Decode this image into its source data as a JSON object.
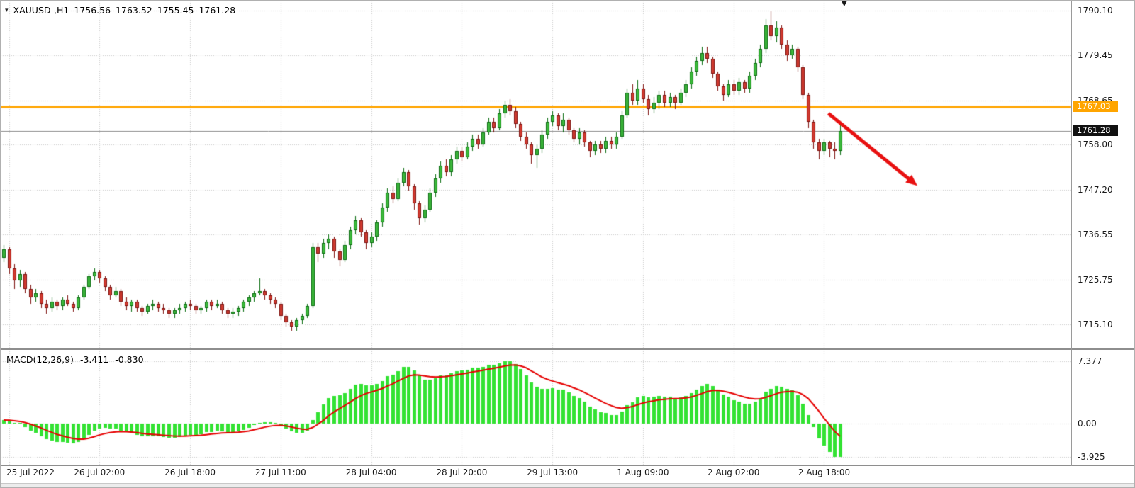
{
  "icons": {
    "symbol_dropdown": "▾",
    "chart_shift": "▼"
  },
  "header": {
    "symbol_period": "XAUUSD-,H1",
    "open": "1756.56",
    "high": "1763.52",
    "low": "1755.45",
    "close": "1761.28"
  },
  "macd_panel": {
    "label": "MACD(12,26,9)",
    "main_value": "-3.411",
    "signal_value": "-0.830"
  },
  "colors": {
    "candle_up_fill": "#3cb83c",
    "candle_up_border": "#0c6e12",
    "candle_down_fill": "#cf3a30",
    "candle_down_border": "#801512",
    "macd_hist": "#33e233",
    "macd_signal": "#e60000",
    "level_line": "#ffa500",
    "bid_line": "#8c8c8c",
    "grid": "#c9c9c9",
    "arrow": "#e81010"
  },
  "chart_data": {
    "type": "candlestick",
    "symbol": "XAUUSD-",
    "timeframe": "H1",
    "price_axis_range": {
      "top": 1792.47,
      "bottom": 1709.27
    },
    "price_ticks": [
      1790.1,
      1779.45,
      1768.65,
      1758.0,
      1747.2,
      1736.55,
      1725.75,
      1715.1
    ],
    "level_line": {
      "value": 1767.03,
      "label": "1767.03"
    },
    "bid_line": {
      "value": 1761.28,
      "label": "1761.28"
    },
    "x_labels": [
      {
        "text": "25 Jul 2022",
        "bar": 1
      },
      {
        "text": "26 Jul 02:00",
        "bar": 18
      },
      {
        "text": "26 Jul 18:00",
        "bar": 35
      },
      {
        "text": "27 Jul 11:00",
        "bar": 52
      },
      {
        "text": "28 Jul 04:00",
        "bar": 69
      },
      {
        "text": "28 Jul 20:00",
        "bar": 86
      },
      {
        "text": "29 Jul 13:00",
        "bar": 103
      },
      {
        "text": "1 Aug 09:00",
        "bar": 120
      },
      {
        "text": "2 Aug 02:00",
        "bar": 137
      },
      {
        "text": "2 Aug 18:00",
        "bar": 154
      }
    ],
    "macd": {
      "params": [
        12,
        26,
        9
      ],
      "main": -3.411,
      "signal": -0.83,
      "ticks": [
        {
          "label": "7.377",
          "value": 7.377
        },
        {
          "label": "0.00",
          "value": 0
        },
        {
          "label": "-3.925",
          "value": -3.925
        }
      ],
      "axis_range": {
        "top": 8.63,
        "bottom": -4.95
      }
    },
    "arrow": {
      "from_bar": 154.8,
      "from_price": 1765.5,
      "to_bar": 171.5,
      "to_price": 1748.2
    },
    "ohlc": [
      [
        1731.0,
        1734.0,
        1730.0,
        1733.0
      ],
      [
        1733.0,
        1733.5,
        1727.0,
        1728.5
      ],
      [
        1728.5,
        1729.5,
        1723.5,
        1725.5
      ],
      [
        1725.5,
        1728.0,
        1724.0,
        1727.0
      ],
      [
        1727.0,
        1727.5,
        1722.5,
        1723.5
      ],
      [
        1723.5,
        1724.5,
        1720.0,
        1721.5
      ],
      [
        1721.5,
        1723.5,
        1720.5,
        1722.5
      ],
      [
        1722.5,
        1723.0,
        1719.0,
        1720.0
      ],
      [
        1720.0,
        1721.0,
        1717.5,
        1719.0
      ],
      [
        1719.0,
        1721.5,
        1718.0,
        1720.5
      ],
      [
        1720.5,
        1721.0,
        1718.5,
        1719.5
      ],
      [
        1719.5,
        1721.5,
        1718.5,
        1721.0
      ],
      [
        1721.0,
        1722.0,
        1719.5,
        1720.0
      ],
      [
        1720.0,
        1720.5,
        1718.0,
        1719.0
      ],
      [
        1719.0,
        1722.0,
        1718.5,
        1721.5
      ],
      [
        1721.5,
        1724.5,
        1721.0,
        1724.0
      ],
      [
        1724.0,
        1727.0,
        1723.5,
        1726.5
      ],
      [
        1726.5,
        1728.5,
        1725.5,
        1727.5
      ],
      [
        1727.5,
        1728.0,
        1725.0,
        1726.0
      ],
      [
        1726.0,
        1726.5,
        1723.0,
        1724.0
      ],
      [
        1724.0,
        1724.5,
        1721.0,
        1722.0
      ],
      [
        1722.0,
        1724.0,
        1721.5,
        1723.0
      ],
      [
        1723.0,
        1723.5,
        1719.5,
        1720.5
      ],
      [
        1720.5,
        1721.5,
        1718.5,
        1719.5
      ],
      [
        1719.5,
        1721.0,
        1718.0,
        1720.5
      ],
      [
        1720.5,
        1721.0,
        1718.0,
        1719.0
      ],
      [
        1719.0,
        1719.5,
        1717.0,
        1718.0
      ],
      [
        1718.0,
        1720.0,
        1717.5,
        1719.5
      ],
      [
        1719.5,
        1721.0,
        1718.5,
        1720.0
      ],
      [
        1720.0,
        1720.5,
        1718.0,
        1719.0
      ],
      [
        1719.0,
        1720.0,
        1717.5,
        1718.5
      ],
      [
        1718.5,
        1719.0,
        1716.5,
        1717.5
      ],
      [
        1717.5,
        1719.0,
        1716.5,
        1718.5
      ],
      [
        1718.5,
        1720.0,
        1717.5,
        1719.0
      ],
      [
        1719.0,
        1720.5,
        1718.0,
        1720.0
      ],
      [
        1720.0,
        1721.0,
        1718.5,
        1719.5
      ],
      [
        1719.5,
        1720.0,
        1717.5,
        1718.5
      ],
      [
        1718.5,
        1719.5,
        1717.5,
        1719.0
      ],
      [
        1719.0,
        1721.0,
        1718.0,
        1720.5
      ],
      [
        1720.5,
        1721.0,
        1718.5,
        1719.5
      ],
      [
        1719.5,
        1721.0,
        1719.0,
        1720.0
      ],
      [
        1720.0,
        1720.5,
        1717.5,
        1718.5
      ],
      [
        1718.5,
        1719.0,
        1716.5,
        1717.5
      ],
      [
        1717.5,
        1719.0,
        1716.5,
        1718.0
      ],
      [
        1718.0,
        1719.5,
        1717.0,
        1719.0
      ],
      [
        1719.0,
        1721.0,
        1718.0,
        1720.5
      ],
      [
        1720.5,
        1722.0,
        1719.5,
        1721.5
      ],
      [
        1721.5,
        1723.0,
        1720.5,
        1722.5
      ],
      [
        1722.5,
        1726.0,
        1722.0,
        1723.0
      ],
      [
        1723.0,
        1723.5,
        1721.0,
        1722.0
      ],
      [
        1722.0,
        1722.5,
        1720.0,
        1721.0
      ],
      [
        1721.0,
        1721.5,
        1719.0,
        1720.0
      ],
      [
        1720.0,
        1720.5,
        1716.0,
        1717.0
      ],
      [
        1717.0,
        1717.5,
        1714.5,
        1715.5
      ],
      [
        1715.5,
        1716.0,
        1713.5,
        1714.5
      ],
      [
        1714.5,
        1716.5,
        1713.5,
        1716.0
      ],
      [
        1716.0,
        1717.5,
        1715.0,
        1717.0
      ],
      [
        1717.0,
        1720.0,
        1716.5,
        1719.5
      ],
      [
        1719.5,
        1734.5,
        1719.0,
        1733.5
      ],
      [
        1733.5,
        1734.5,
        1730.0,
        1732.0
      ],
      [
        1732.0,
        1735.5,
        1731.0,
        1734.5
      ],
      [
        1734.5,
        1736.5,
        1733.0,
        1735.5
      ],
      [
        1735.5,
        1736.0,
        1731.0,
        1732.5
      ],
      [
        1732.5,
        1733.0,
        1729.0,
        1730.5
      ],
      [
        1730.5,
        1735.0,
        1730.0,
        1734.0
      ],
      [
        1734.0,
        1738.5,
        1733.0,
        1737.5
      ],
      [
        1737.5,
        1741.0,
        1736.5,
        1740.0
      ],
      [
        1740.0,
        1740.5,
        1736.0,
        1737.0
      ],
      [
        1737.0,
        1737.5,
        1733.0,
        1734.5
      ],
      [
        1734.5,
        1737.0,
        1733.5,
        1736.0
      ],
      [
        1736.0,
        1740.0,
        1735.0,
        1739.5
      ],
      [
        1739.5,
        1744.0,
        1738.5,
        1743.0
      ],
      [
        1743.0,
        1747.5,
        1742.0,
        1746.5
      ],
      [
        1746.5,
        1748.0,
        1744.0,
        1745.0
      ],
      [
        1745.0,
        1750.0,
        1744.5,
        1749.0
      ],
      [
        1749.0,
        1752.5,
        1748.0,
        1751.5
      ],
      [
        1751.5,
        1752.0,
        1747.0,
        1748.0
      ],
      [
        1748.0,
        1748.5,
        1742.5,
        1744.0
      ],
      [
        1744.0,
        1744.5,
        1739.0,
        1740.5
      ],
      [
        1740.5,
        1743.5,
        1739.5,
        1742.5
      ],
      [
        1742.5,
        1747.5,
        1742.0,
        1746.5
      ],
      [
        1746.5,
        1751.0,
        1745.5,
        1750.0
      ],
      [
        1750.0,
        1754.0,
        1749.0,
        1753.0
      ],
      [
        1753.0,
        1754.5,
        1750.5,
        1751.5
      ],
      [
        1751.5,
        1755.5,
        1750.5,
        1754.5
      ],
      [
        1754.5,
        1757.5,
        1753.5,
        1756.5
      ],
      [
        1756.5,
        1757.5,
        1754.0,
        1755.0
      ],
      [
        1755.0,
        1758.5,
        1754.5,
        1757.5
      ],
      [
        1757.5,
        1760.5,
        1756.5,
        1759.5
      ],
      [
        1759.5,
        1760.5,
        1757.0,
        1758.0
      ],
      [
        1758.0,
        1762.0,
        1757.5,
        1761.0
      ],
      [
        1761.0,
        1764.5,
        1760.5,
        1763.5
      ],
      [
        1763.5,
        1764.5,
        1761.0,
        1762.0
      ],
      [
        1762.0,
        1766.5,
        1761.5,
        1765.5
      ],
      [
        1765.5,
        1768.5,
        1764.5,
        1767.5
      ],
      [
        1767.5,
        1769.0,
        1765.0,
        1766.0
      ],
      [
        1766.0,
        1767.0,
        1762.0,
        1763.0
      ],
      [
        1763.0,
        1763.5,
        1759.0,
        1760.0
      ],
      [
        1760.0,
        1761.0,
        1757.0,
        1758.0
      ],
      [
        1758.0,
        1758.5,
        1753.5,
        1755.5
      ],
      [
        1755.5,
        1758.0,
        1752.5,
        1757.0
      ],
      [
        1757.0,
        1761.5,
        1756.0,
        1760.5
      ],
      [
        1760.5,
        1764.5,
        1759.5,
        1763.5
      ],
      [
        1763.5,
        1766.0,
        1762.5,
        1765.0
      ],
      [
        1765.0,
        1765.5,
        1761.5,
        1762.5
      ],
      [
        1762.5,
        1765.5,
        1761.0,
        1764.0
      ],
      [
        1764.0,
        1764.5,
        1760.5,
        1761.5
      ],
      [
        1761.5,
        1762.0,
        1758.5,
        1759.5
      ],
      [
        1759.5,
        1762.0,
        1758.0,
        1761.0
      ],
      [
        1761.0,
        1761.5,
        1757.5,
        1758.5
      ],
      [
        1758.5,
        1759.0,
        1755.0,
        1756.5
      ],
      [
        1756.5,
        1759.0,
        1755.5,
        1758.0
      ],
      [
        1758.0,
        1759.0,
        1756.0,
        1757.0
      ],
      [
        1757.0,
        1760.0,
        1756.0,
        1759.0
      ],
      [
        1759.0,
        1760.0,
        1757.0,
        1758.0
      ],
      [
        1758.0,
        1761.0,
        1757.0,
        1760.0
      ],
      [
        1760.0,
        1766.0,
        1759.5,
        1765.0
      ],
      [
        1765.0,
        1771.5,
        1764.5,
        1770.5
      ],
      [
        1770.5,
        1772.5,
        1767.5,
        1768.5
      ],
      [
        1768.5,
        1773.5,
        1767.5,
        1771.5
      ],
      [
        1771.5,
        1772.5,
        1768.0,
        1769.0
      ],
      [
        1769.0,
        1770.0,
        1765.0,
        1766.5
      ],
      [
        1766.5,
        1769.5,
        1765.5,
        1768.0
      ],
      [
        1768.0,
        1771.0,
        1766.5,
        1770.0
      ],
      [
        1770.0,
        1771.0,
        1767.0,
        1768.0
      ],
      [
        1768.0,
        1770.5,
        1767.0,
        1769.5
      ],
      [
        1769.5,
        1770.0,
        1766.5,
        1768.0
      ],
      [
        1768.0,
        1771.5,
        1767.5,
        1770.5
      ],
      [
        1770.5,
        1773.5,
        1769.5,
        1772.5
      ],
      [
        1772.5,
        1776.5,
        1771.5,
        1775.5
      ],
      [
        1775.5,
        1779.0,
        1774.5,
        1778.0
      ],
      [
        1778.0,
        1781.5,
        1777.0,
        1780.0
      ],
      [
        1780.0,
        1781.5,
        1777.5,
        1778.5
      ],
      [
        1778.5,
        1779.0,
        1774.0,
        1775.0
      ],
      [
        1775.0,
        1775.5,
        1771.0,
        1772.0
      ],
      [
        1772.0,
        1772.5,
        1768.5,
        1770.0
      ],
      [
        1770.0,
        1773.5,
        1769.5,
        1772.5
      ],
      [
        1772.5,
        1773.5,
        1770.0,
        1771.0
      ],
      [
        1771.0,
        1774.0,
        1770.0,
        1773.0
      ],
      [
        1773.0,
        1773.5,
        1770.5,
        1771.5
      ],
      [
        1771.5,
        1775.5,
        1770.5,
        1774.5
      ],
      [
        1774.5,
        1778.5,
        1773.5,
        1777.5
      ],
      [
        1777.5,
        1782.0,
        1776.5,
        1781.0
      ],
      [
        1781.0,
        1788.0,
        1780.0,
        1786.5
      ],
      [
        1786.5,
        1790.0,
        1783.0,
        1784.0
      ],
      [
        1784.0,
        1787.5,
        1782.5,
        1786.0
      ],
      [
        1786.0,
        1786.5,
        1781.0,
        1782.0
      ],
      [
        1782.0,
        1783.0,
        1778.0,
        1779.5
      ],
      [
        1779.5,
        1782.0,
        1778.5,
        1781.0
      ],
      [
        1781.0,
        1781.5,
        1775.5,
        1776.5
      ],
      [
        1776.5,
        1777.0,
        1769.0,
        1770.0
      ],
      [
        1770.0,
        1770.5,
        1762.0,
        1763.5
      ],
      [
        1763.5,
        1764.0,
        1757.0,
        1758.5
      ],
      [
        1758.5,
        1759.5,
        1754.5,
        1756.5
      ],
      [
        1756.5,
        1759.5,
        1755.5,
        1758.5
      ],
      [
        1758.5,
        1759.0,
        1755.0,
        1757.0
      ],
      [
        1757.0,
        1758.5,
        1754.5,
        1756.5
      ],
      [
        1756.56,
        1763.52,
        1755.45,
        1761.28
      ]
    ]
  }
}
